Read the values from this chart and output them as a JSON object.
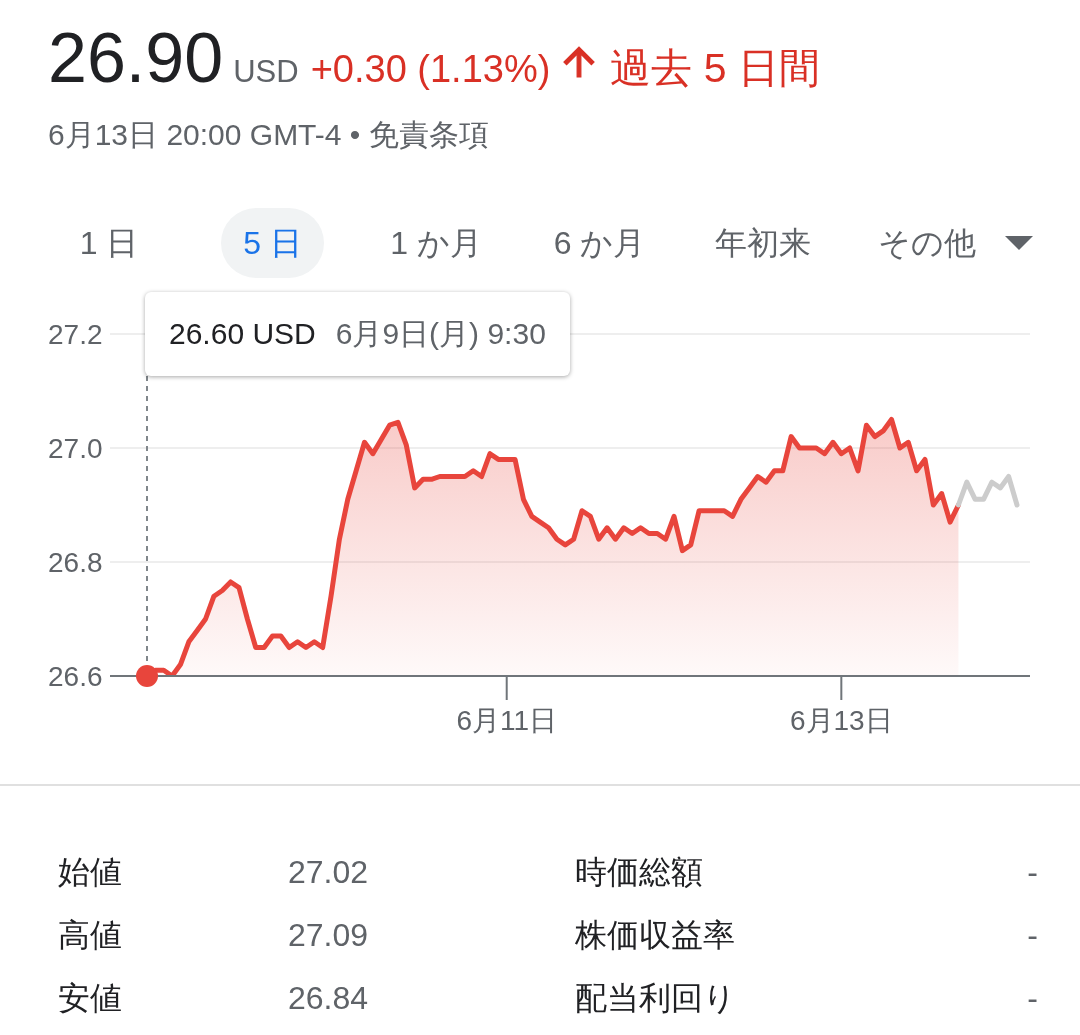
{
  "chart_data": {
    "type": "area",
    "title": "26.90",
    "subtitle": "6月13日 20:00 GMT-4 • 免責条項",
    "annotations": [
      "USD",
      "+0.30 (1.13%)",
      "過去 5 日間",
      "1 日",
      "5 日",
      "1 か月",
      "6 か月",
      "年初来",
      "その他",
      "26.60 USD",
      "6月9日(月) 9:30",
      "始値",
      "27.02",
      "時価総額",
      "-",
      "高値",
      "27.09",
      "株価収益率",
      "-",
      "安値",
      "26.84",
      "配当利回り",
      "-"
    ],
    "categories": [
      null,
      null,
      null,
      null,
      null,
      null,
      null,
      null,
      null,
      null,
      null,
      null,
      null,
      null,
      null,
      null,
      null,
      null,
      null,
      null,
      null,
      null,
      null,
      null,
      null,
      null,
      null,
      null,
      null,
      null,
      null,
      null,
      null,
      null,
      null,
      null,
      null,
      null,
      null,
      null,
      null,
      null,
      null,
      "6月11日",
      null,
      null,
      null,
      null,
      null,
      null,
      null,
      null,
      null,
      null,
      null,
      null,
      null,
      null,
      null,
      null,
      null,
      null,
      null,
      null,
      null,
      null,
      null,
      null,
      null,
      null,
      null,
      null,
      null,
      null,
      null,
      null,
      null,
      null,
      null,
      null,
      null,
      null,
      null,
      "6月13日",
      null,
      null,
      null,
      null,
      null,
      null,
      null,
      null,
      null,
      null,
      null,
      null,
      null,
      null,
      null,
      null,
      null,
      null,
      null,
      null,
      null
    ],
    "series": [
      {
        "color": "#e8453c",
        "values": [
          26.6,
          26.61,
          26.61,
          26.6,
          26.62,
          26.66,
          26.68,
          26.7,
          26.74,
          26.75,
          26.765,
          26.755,
          26.7,
          26.65,
          26.65,
          26.67,
          26.67,
          26.65,
          26.66,
          26.65,
          26.66,
          26.65,
          26.74,
          26.84,
          26.91,
          26.96,
          27.01,
          26.99,
          27.015,
          27.04,
          27.045,
          27.005,
          26.93,
          26.945,
          26.945,
          26.95,
          26.95,
          26.95,
          26.95,
          26.96,
          26.95,
          26.99,
          26.98,
          26.98,
          26.98,
          26.91,
          26.88,
          26.87,
          26.86,
          26.84,
          26.83,
          26.84,
          26.89,
          26.88,
          26.84,
          26.86,
          26.84,
          26.86,
          26.85,
          26.86,
          26.85,
          26.85,
          26.84,
          26.88,
          26.82,
          26.83,
          26.89,
          26.89,
          26.89,
          26.89,
          26.88,
          26.91,
          26.93,
          26.95,
          26.94,
          26.96,
          26.96,
          27.02,
          27.0,
          27.0,
          27.0,
          26.99,
          27.01,
          26.99,
          27.0,
          26.96,
          27.04,
          27.02,
          27.03,
          27.05,
          27.0,
          27.01,
          26.96,
          26.98,
          26.9,
          26.92,
          26.87,
          26.9,
          null,
          null,
          null,
          null,
          null,
          null,
          null
        ]
      },
      {
        "type": "line",
        "color": "#cccccc",
        "values": [
          null,
          null,
          null,
          null,
          null,
          null,
          null,
          null,
          null,
          null,
          null,
          null,
          null,
          null,
          null,
          null,
          null,
          null,
          null,
          null,
          null,
          null,
          null,
          null,
          null,
          null,
          null,
          null,
          null,
          null,
          null,
          null,
          null,
          null,
          null,
          null,
          null,
          null,
          null,
          null,
          null,
          null,
          null,
          null,
          null,
          null,
          null,
          null,
          null,
          null,
          null,
          null,
          null,
          null,
          null,
          null,
          null,
          null,
          null,
          null,
          null,
          null,
          null,
          null,
          null,
          null,
          null,
          null,
          null,
          null,
          null,
          null,
          null,
          null,
          null,
          null,
          null,
          null,
          null,
          null,
          null,
          null,
          null,
          null,
          null,
          null,
          null,
          null,
          null,
          null,
          null,
          null,
          null,
          null,
          null,
          null,
          null,
          26.9,
          26.94,
          26.91,
          26.91,
          26.94,
          26.93,
          26.95,
          26.9
        ]
      }
    ],
    "ylim": [
      26.6,
      27.2
    ],
    "yticks": [
      26.6,
      26.8,
      {
        "value": 27,
        "label": "27.0"
      },
      27.2
    ],
    "grid": "y"
  }
}
